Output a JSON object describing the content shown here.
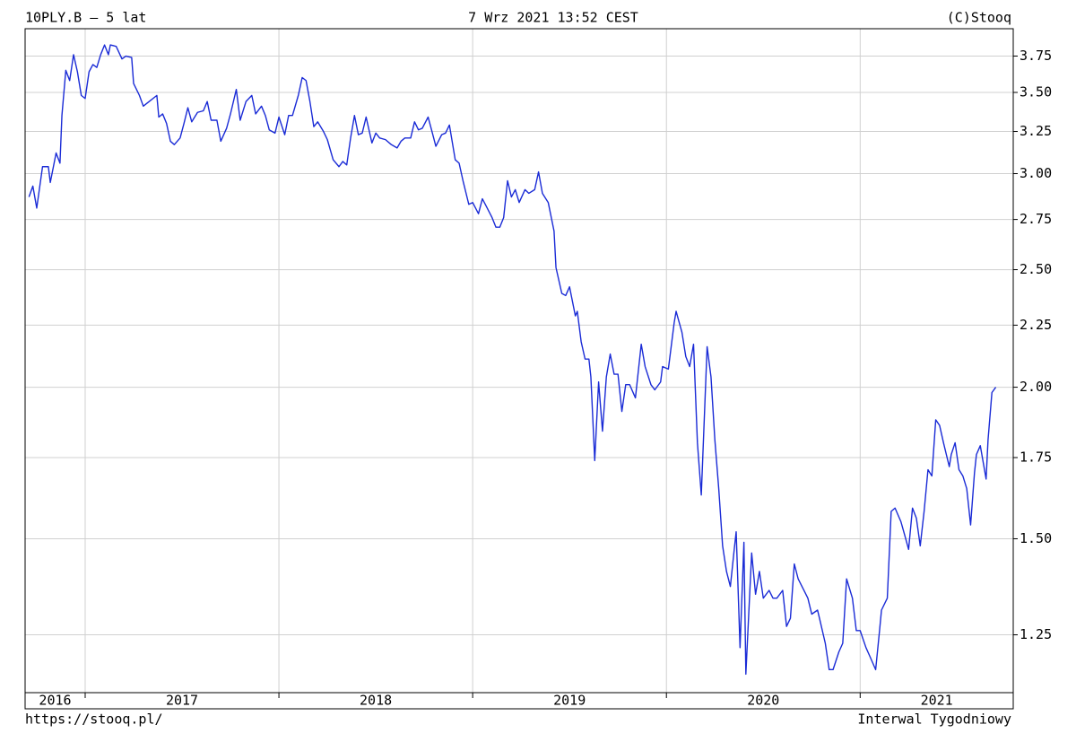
{
  "chart_data": {
    "type": "line",
    "title": "10PLY.B – 5 lat",
    "timestamp": "7 Wrz 2021 13:52 CEST",
    "source": "(C)Stooq",
    "url": "https://stooq.pl/",
    "interval": "Interwal Tygodniowy",
    "log_scale": true,
    "grid": true,
    "color": "#1a2bd6",
    "xlim": [
      2016.69,
      2021.79
    ],
    "xticks": [
      {
        "value": 2016,
        "label": "2016"
      },
      {
        "value": 2017,
        "label": "2017"
      },
      {
        "value": 2018,
        "label": "2018"
      },
      {
        "value": 2019,
        "label": "2019"
      },
      {
        "value": 2020,
        "label": "2020"
      },
      {
        "value": 2021,
        "label": "2021"
      }
    ],
    "ylim": [
      1.12,
      3.95
    ],
    "yticks": [
      1.25,
      {
        "value": 1.5,
        "label": "1.50"
      },
      1.75,
      {
        "value": 2,
        "label": "2.00"
      },
      2.25,
      {
        "value": 2.5,
        "label": "2.50"
      },
      2.75,
      {
        "value": 3,
        "label": "3.00"
      },
      3.25,
      {
        "value": 3.5,
        "label": "3.50"
      },
      3.75
    ],
    "x": [
      2016.71,
      2016.73,
      2016.75,
      2016.78,
      2016.81,
      2016.82,
      2016.85,
      2016.87,
      2016.88,
      2016.9,
      2016.92,
      2016.94,
      2016.96,
      2016.98,
      2017.0,
      2017.02,
      2017.04,
      2017.06,
      2017.08,
      2017.1,
      2017.12,
      2017.13,
      2017.16,
      2017.19,
      2017.21,
      2017.24,
      2017.25,
      2017.28,
      2017.3,
      2017.33,
      2017.37,
      2017.38,
      2017.4,
      2017.42,
      2017.44,
      2017.46,
      2017.49,
      2017.51,
      2017.53,
      2017.55,
      2017.58,
      2017.61,
      2017.63,
      2017.65,
      2017.68,
      2017.7,
      2017.73,
      2017.75,
      2017.78,
      2017.8,
      2017.83,
      2017.86,
      2017.88,
      2017.91,
      2017.93,
      2017.95,
      2017.98,
      2018.0,
      2018.03,
      2018.05,
      2018.07,
      2018.1,
      2018.12,
      2018.14,
      2018.16,
      2018.18,
      2018.2,
      2018.23,
      2018.25,
      2018.28,
      2018.31,
      2018.33,
      2018.35,
      2018.37,
      2018.39,
      2018.41,
      2018.43,
      2018.45,
      2018.48,
      2018.5,
      2018.52,
      2018.55,
      2018.58,
      2018.61,
      2018.63,
      2018.65,
      2018.68,
      2018.7,
      2018.72,
      2018.74,
      2018.77,
      2018.79,
      2018.81,
      2018.84,
      2018.86,
      2018.88,
      2018.91,
      2018.93,
      2018.95,
      2018.98,
      2019.0,
      2019.03,
      2019.05,
      2019.07,
      2019.1,
      2019.12,
      2019.14,
      2019.16,
      2019.18,
      2019.2,
      2019.22,
      2019.24,
      2019.27,
      2019.29,
      2019.32,
      2019.34,
      2019.36,
      2019.39,
      2019.42,
      2019.43,
      2019.46,
      2019.48,
      2019.5,
      2019.53,
      2019.54,
      2019.56,
      2019.58,
      2019.6,
      2019.61,
      2019.63,
      2019.65,
      2019.67,
      2019.69,
      2019.71,
      2019.73,
      2019.75,
      2019.77,
      2019.79,
      2019.81,
      2019.84,
      2019.87,
      2019.89,
      2019.92,
      2019.94,
      2019.97,
      2019.98,
      2020.01,
      2020.04,
      2020.05,
      2020.08,
      2020.1,
      2020.12,
      2020.14,
      2020.16,
      2020.18,
      2020.21,
      2020.23,
      2020.25,
      2020.27,
      2020.29,
      2020.31,
      2020.33,
      2020.35,
      2020.36,
      2020.38,
      2020.4,
      2020.41,
      2020.44,
      2020.46,
      2020.48,
      2020.5,
      2020.53,
      2020.55,
      2020.57,
      2020.6,
      2020.62,
      2020.64,
      2020.66,
      2020.68,
      2020.71,
      2020.73,
      2020.75,
      2020.78,
      2020.79,
      2020.82,
      2020.84,
      2020.86,
      2020.89,
      2020.91,
      2020.93,
      2020.96,
      2020.98,
      2021.0,
      2021.03,
      2021.05,
      2021.08,
      2021.1,
      2021.11,
      2021.14,
      2021.16,
      2021.18,
      2021.21,
      2021.23,
      2021.25,
      2021.27,
      2021.29,
      2021.31,
      2021.33,
      2021.35,
      2021.37,
      2021.39,
      2021.41,
      2021.43,
      2021.46,
      2021.47,
      2021.49,
      2021.51,
      2021.53,
      2021.55,
      2021.57,
      2021.59,
      2021.6,
      2021.62,
      2021.65,
      2021.66,
      2021.68,
      2021.7
    ],
    "values": [
      2.87,
      2.93,
      2.81,
      3.04,
      3.04,
      2.95,
      3.12,
      3.06,
      3.35,
      3.65,
      3.58,
      3.76,
      3.64,
      3.48,
      3.46,
      3.64,
      3.69,
      3.67,
      3.76,
      3.83,
      3.76,
      3.83,
      3.82,
      3.73,
      3.75,
      3.74,
      3.56,
      3.48,
      3.41,
      3.44,
      3.48,
      3.34,
      3.36,
      3.3,
      3.19,
      3.17,
      3.21,
      3.3,
      3.4,
      3.31,
      3.37,
      3.38,
      3.44,
      3.32,
      3.32,
      3.19,
      3.27,
      3.36,
      3.52,
      3.32,
      3.44,
      3.48,
      3.36,
      3.41,
      3.35,
      3.26,
      3.24,
      3.34,
      3.23,
      3.35,
      3.35,
      3.48,
      3.6,
      3.58,
      3.44,
      3.28,
      3.31,
      3.25,
      3.2,
      3.08,
      3.04,
      3.07,
      3.05,
      3.21,
      3.35,
      3.23,
      3.24,
      3.34,
      3.18,
      3.24,
      3.21,
      3.2,
      3.17,
      3.15,
      3.19,
      3.21,
      3.21,
      3.31,
      3.26,
      3.27,
      3.34,
      3.25,
      3.16,
      3.23,
      3.24,
      3.29,
      3.08,
      3.06,
      2.96,
      2.83,
      2.84,
      2.78,
      2.86,
      2.82,
      2.76,
      2.71,
      2.71,
      2.76,
      2.96,
      2.87,
      2.91,
      2.84,
      2.91,
      2.89,
      2.91,
      3.01,
      2.89,
      2.84,
      2.69,
      2.51,
      2.39,
      2.38,
      2.42,
      2.29,
      2.31,
      2.18,
      2.11,
      2.11,
      2.04,
      1.74,
      2.02,
      1.84,
      2.04,
      2.13,
      2.05,
      2.05,
      1.91,
      2.01,
      2.01,
      1.96,
      2.17,
      2.08,
      2.01,
      1.99,
      2.02,
      2.08,
      2.07,
      2.26,
      2.31,
      2.22,
      2.12,
      2.08,
      2.17,
      1.8,
      1.63,
      2.16,
      2.04,
      1.81,
      1.65,
      1.48,
      1.41,
      1.37,
      1.47,
      1.52,
      1.22,
      1.49,
      1.16,
      1.46,
      1.35,
      1.41,
      1.34,
      1.36,
      1.34,
      1.34,
      1.36,
      1.27,
      1.29,
      1.43,
      1.39,
      1.36,
      1.34,
      1.3,
      1.31,
      1.29,
      1.23,
      1.17,
      1.17,
      1.21,
      1.23,
      1.39,
      1.34,
      1.26,
      1.26,
      1.22,
      1.2,
      1.17,
      1.26,
      1.31,
      1.34,
      1.58,
      1.59,
      1.55,
      1.51,
      1.47,
      1.59,
      1.56,
      1.48,
      1.58,
      1.71,
      1.69,
      1.88,
      1.86,
      1.8,
      1.72,
      1.76,
      1.8,
      1.71,
      1.69,
      1.65,
      1.54,
      1.7,
      1.76,
      1.79,
      1.68,
      1.81,
      1.98,
      2.0
    ]
  }
}
